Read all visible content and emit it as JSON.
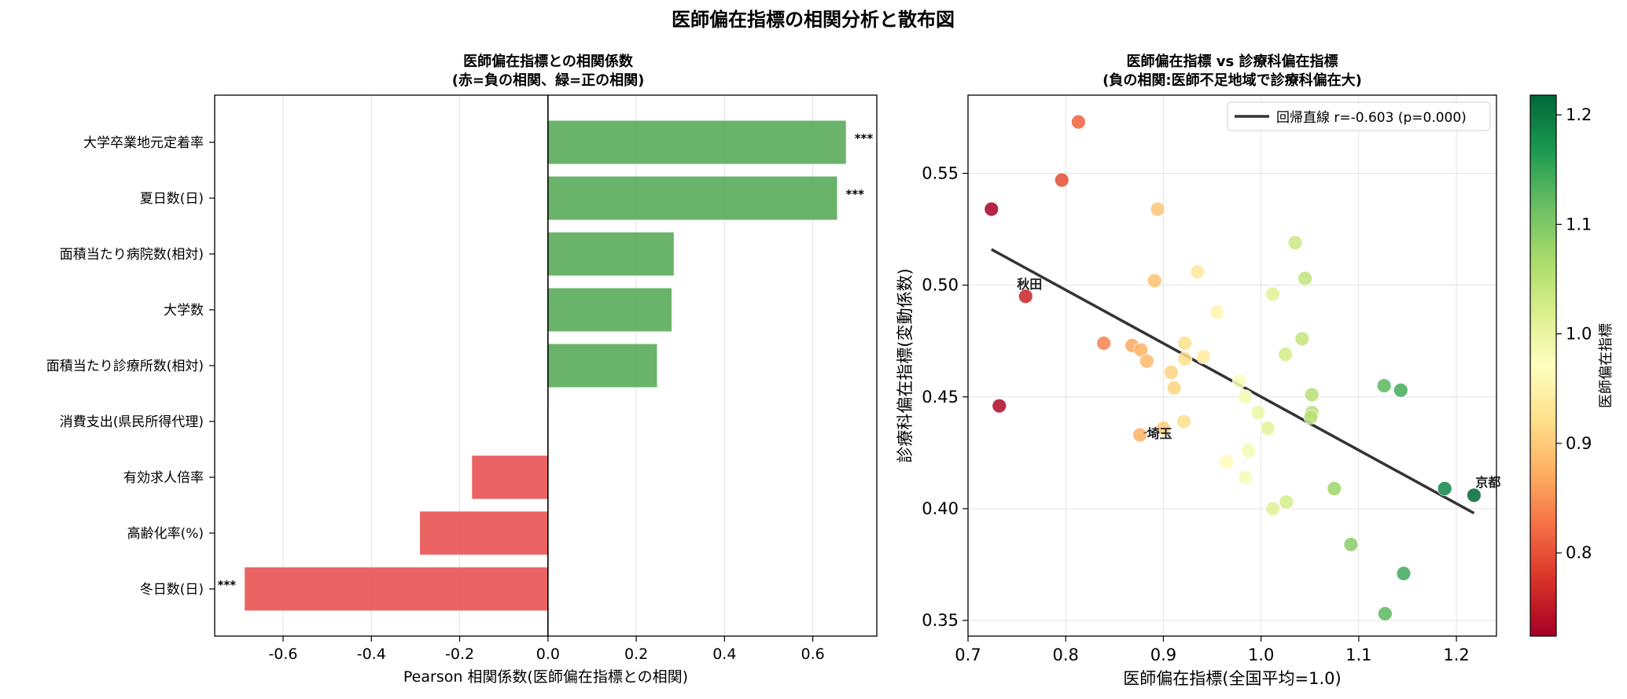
{
  "suptitle": "医師偏在指標の相関分析と散布図",
  "chart_data": [
    {
      "type": "bar",
      "orientation": "horizontal",
      "title_line1": "医師偏在指標との相関係数",
      "title_line2": "(赤=負の相関、緑=正の相関)",
      "xlabel": "Pearson 相関係数(医師偏在指標との相関)",
      "ylabel": "",
      "xlim": [
        -0.755,
        0.745
      ],
      "xticks": [
        -0.6,
        -0.4,
        -0.2,
        0.0,
        0.2,
        0.4,
        0.6
      ],
      "xtick_labels": [
        "-0.6",
        "-0.4",
        "-0.2",
        "0.0",
        "0.2",
        "0.4",
        "0.6"
      ],
      "grid": true,
      "positive_color": "#5aab5a",
      "negative_color": "#e85353",
      "categories": [
        "大学卒業地元定着率",
        "夏日数(日)",
        "面積当たり病院数(相対)",
        "大学数",
        "面積当たり診療所数(相対)",
        "消費支出(県民所得代理)",
        "有効求人倍率",
        "高齢化率(%)",
        "冬日数(日)"
      ],
      "values": [
        0.675,
        0.655,
        0.285,
        0.28,
        0.247,
        0.0,
        -0.172,
        -0.29,
        -0.687
      ],
      "significance": [
        "***",
        "***",
        "",
        "",
        "",
        "",
        "",
        "",
        "***"
      ]
    },
    {
      "type": "scatter",
      "title_line1": "医師偏在指標 vs 診療科偏在指標",
      "title_line2": "(負の相関:医師不足地域で診療科偏在大)",
      "xlabel": "医師偏在指標(全国平均=1.0)",
      "ylabel": "診療科偏在指標(変動係数)",
      "xlim": [
        0.7,
        1.241
      ],
      "ylim": [
        0.343,
        0.585
      ],
      "xticks": [
        0.7,
        0.8,
        0.9,
        1.0,
        1.1,
        1.2
      ],
      "xtick_labels": [
        "0.7",
        "0.8",
        "0.9",
        "1.0",
        "1.1",
        "1.2"
      ],
      "yticks": [
        0.35,
        0.4,
        0.45,
        0.5,
        0.55
      ],
      "ytick_labels": [
        "0.35",
        "0.40",
        "0.45",
        "0.50",
        "0.55"
      ],
      "grid": true,
      "legend": {
        "placement": "top-right",
        "label": "回帰直線 r=-0.603 (p=0.000)"
      },
      "regression": {
        "x": [
          0.724,
          1.218
        ],
        "y": [
          0.516,
          0.398
        ],
        "color": "#333333"
      },
      "colorbar": {
        "label": "医師偏在指標",
        "range": [
          0.724,
          1.218
        ],
        "ticks": [
          0.8,
          0.9,
          1.0,
          1.1,
          1.2
        ],
        "tick_labels": [
          "0.8",
          "0.9",
          "1.0",
          "1.1",
          "1.2"
        ],
        "colormap": "RdYlGn",
        "colormap_stops": [
          "#a50026",
          "#d73027",
          "#f46d43",
          "#fdae61",
          "#fee08b",
          "#ffffbf",
          "#d9ef8b",
          "#a6d96a",
          "#66bd63",
          "#1a9850",
          "#006837"
        ]
      },
      "annotations": [
        {
          "text": "秋田",
          "x": 0.759,
          "y": 0.495
        },
        {
          "text": "埼玉",
          "x": 0.876,
          "y": 0.433
        },
        {
          "text": "京都",
          "x": 1.218,
          "y": 0.406
        }
      ],
      "points": [
        {
          "x": 0.813,
          "y": 0.573
        },
        {
          "x": 0.724,
          "y": 0.534
        },
        {
          "x": 0.796,
          "y": 0.547
        },
        {
          "x": 0.759,
          "y": 0.495
        },
        {
          "x": 0.732,
          "y": 0.446
        },
        {
          "x": 0.894,
          "y": 0.534
        },
        {
          "x": 1.035,
          "y": 0.519
        },
        {
          "x": 0.935,
          "y": 0.506
        },
        {
          "x": 1.045,
          "y": 0.503
        },
        {
          "x": 0.891,
          "y": 0.502
        },
        {
          "x": 1.012,
          "y": 0.496
        },
        {
          "x": 0.955,
          "y": 0.488
        },
        {
          "x": 1.042,
          "y": 0.476
        },
        {
          "x": 0.839,
          "y": 0.474
        },
        {
          "x": 0.922,
          "y": 0.474
        },
        {
          "x": 0.868,
          "y": 0.473
        },
        {
          "x": 0.877,
          "y": 0.471
        },
        {
          "x": 1.025,
          "y": 0.469
        },
        {
          "x": 0.941,
          "y": 0.468
        },
        {
          "x": 0.922,
          "y": 0.467
        },
        {
          "x": 0.883,
          "y": 0.466
        },
        {
          "x": 0.908,
          "y": 0.461
        },
        {
          "x": 0.978,
          "y": 0.457
        },
        {
          "x": 1.126,
          "y": 0.455
        },
        {
          "x": 0.911,
          "y": 0.454
        },
        {
          "x": 1.143,
          "y": 0.453
        },
        {
          "x": 1.052,
          "y": 0.451
        },
        {
          "x": 0.984,
          "y": 0.45
        },
        {
          "x": 0.997,
          "y": 0.443
        },
        {
          "x": 1.052,
          "y": 0.443
        },
        {
          "x": 1.051,
          "y": 0.441
        },
        {
          "x": 0.921,
          "y": 0.439
        },
        {
          "x": 1.007,
          "y": 0.436
        },
        {
          "x": 0.9,
          "y": 0.436
        },
        {
          "x": 0.876,
          "y": 0.433
        },
        {
          "x": 0.987,
          "y": 0.426
        },
        {
          "x": 0.965,
          "y": 0.421
        },
        {
          "x": 0.984,
          "y": 0.414
        },
        {
          "x": 1.188,
          "y": 0.409
        },
        {
          "x": 1.075,
          "y": 0.409
        },
        {
          "x": 1.218,
          "y": 0.406
        },
        {
          "x": 1.026,
          "y": 0.403
        },
        {
          "x": 1.012,
          "y": 0.4
        },
        {
          "x": 1.092,
          "y": 0.384
        },
        {
          "x": 1.146,
          "y": 0.371
        },
        {
          "x": 1.127,
          "y": 0.353
        }
      ]
    }
  ]
}
